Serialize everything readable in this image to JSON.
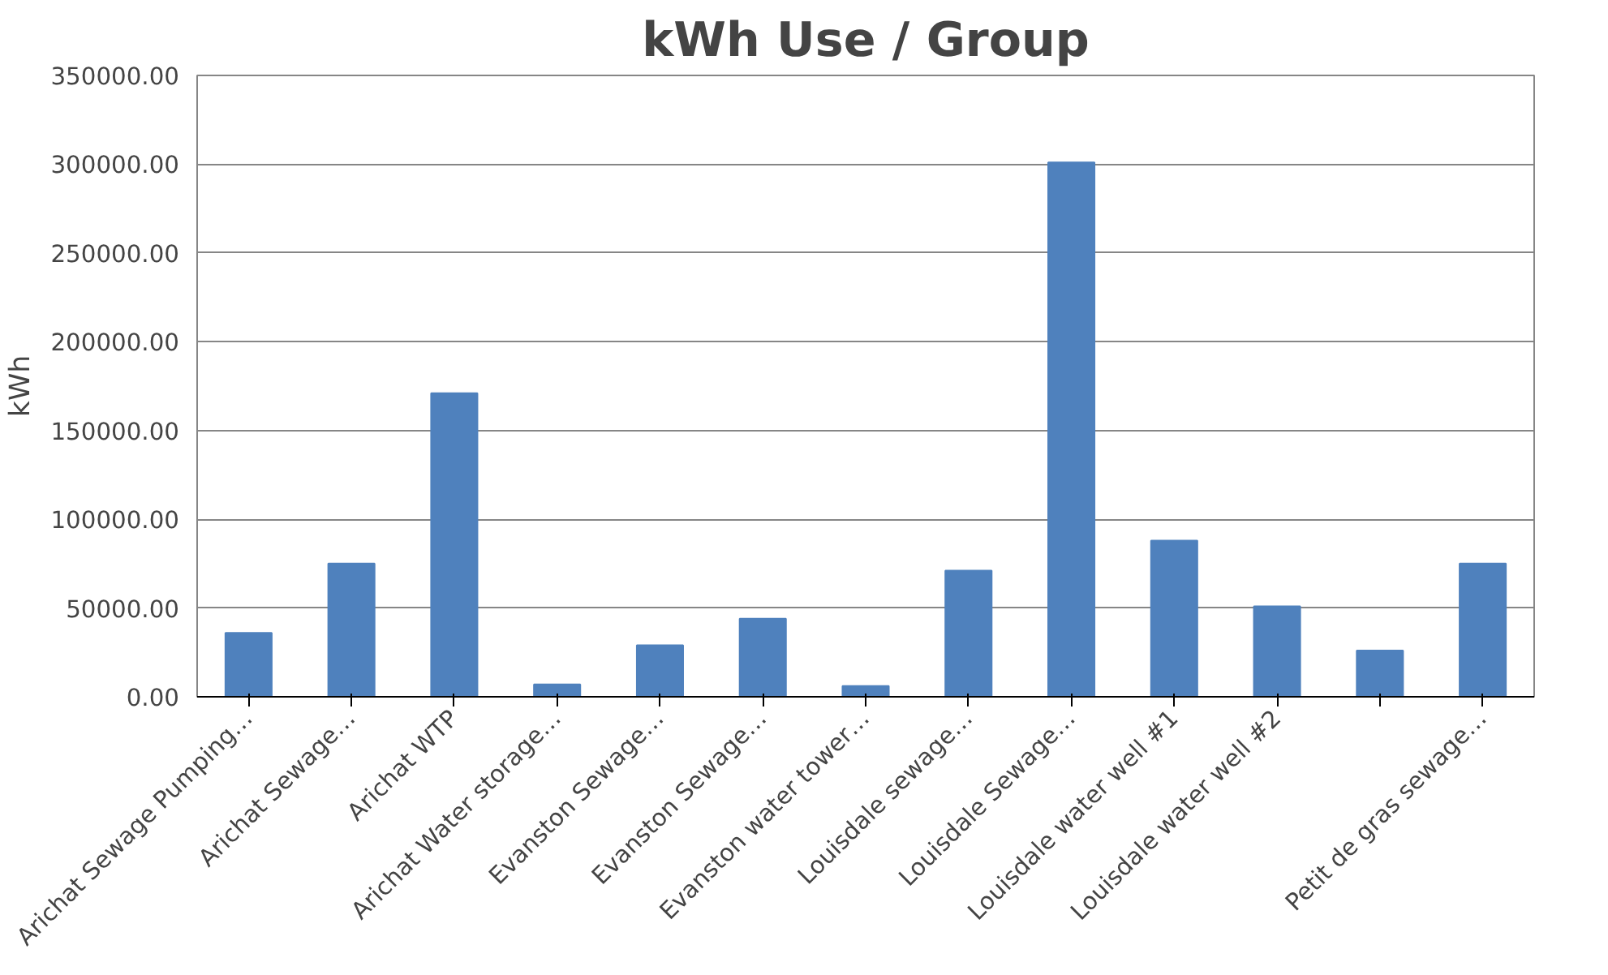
{
  "chart_data": {
    "type": "bar",
    "title": "kWh Use / Group",
    "ylabel": "kWh",
    "categories": [
      "Arichat Sewage Pumping…",
      "Arichat Sewage…",
      "Arichat WTP",
      "Arichat Water storage…",
      "Evanston Sewage…",
      "Evanston Sewage…",
      "Evanston water tower…",
      "Louisdale sewage…",
      "Louisdale Sewage…",
      "Louisdale water well #1",
      "Louisdale water well #2",
      null,
      "Petit de gras sewage…"
    ],
    "values": [
      36000,
      75000,
      171000,
      7000,
      29000,
      44000,
      6000,
      71000,
      301000,
      88000,
      51000,
      26000,
      75000
    ],
    "color": "#4f81bd",
    "ylim": [
      0,
      350000
    ],
    "yticks": [
      {
        "value": 0,
        "label": "0.00"
      },
      {
        "value": 50000,
        "label": "50000.00"
      },
      {
        "value": 100000,
        "label": "100000.00"
      },
      {
        "value": 150000,
        "label": "150000.00"
      },
      {
        "value": 200000,
        "label": "200000.00"
      },
      {
        "value": 250000,
        "label": "250000.00"
      },
      {
        "value": 300000,
        "label": "300000.00"
      },
      {
        "value": 350000,
        "label": "350000.00"
      }
    ],
    "grid": "y"
  }
}
